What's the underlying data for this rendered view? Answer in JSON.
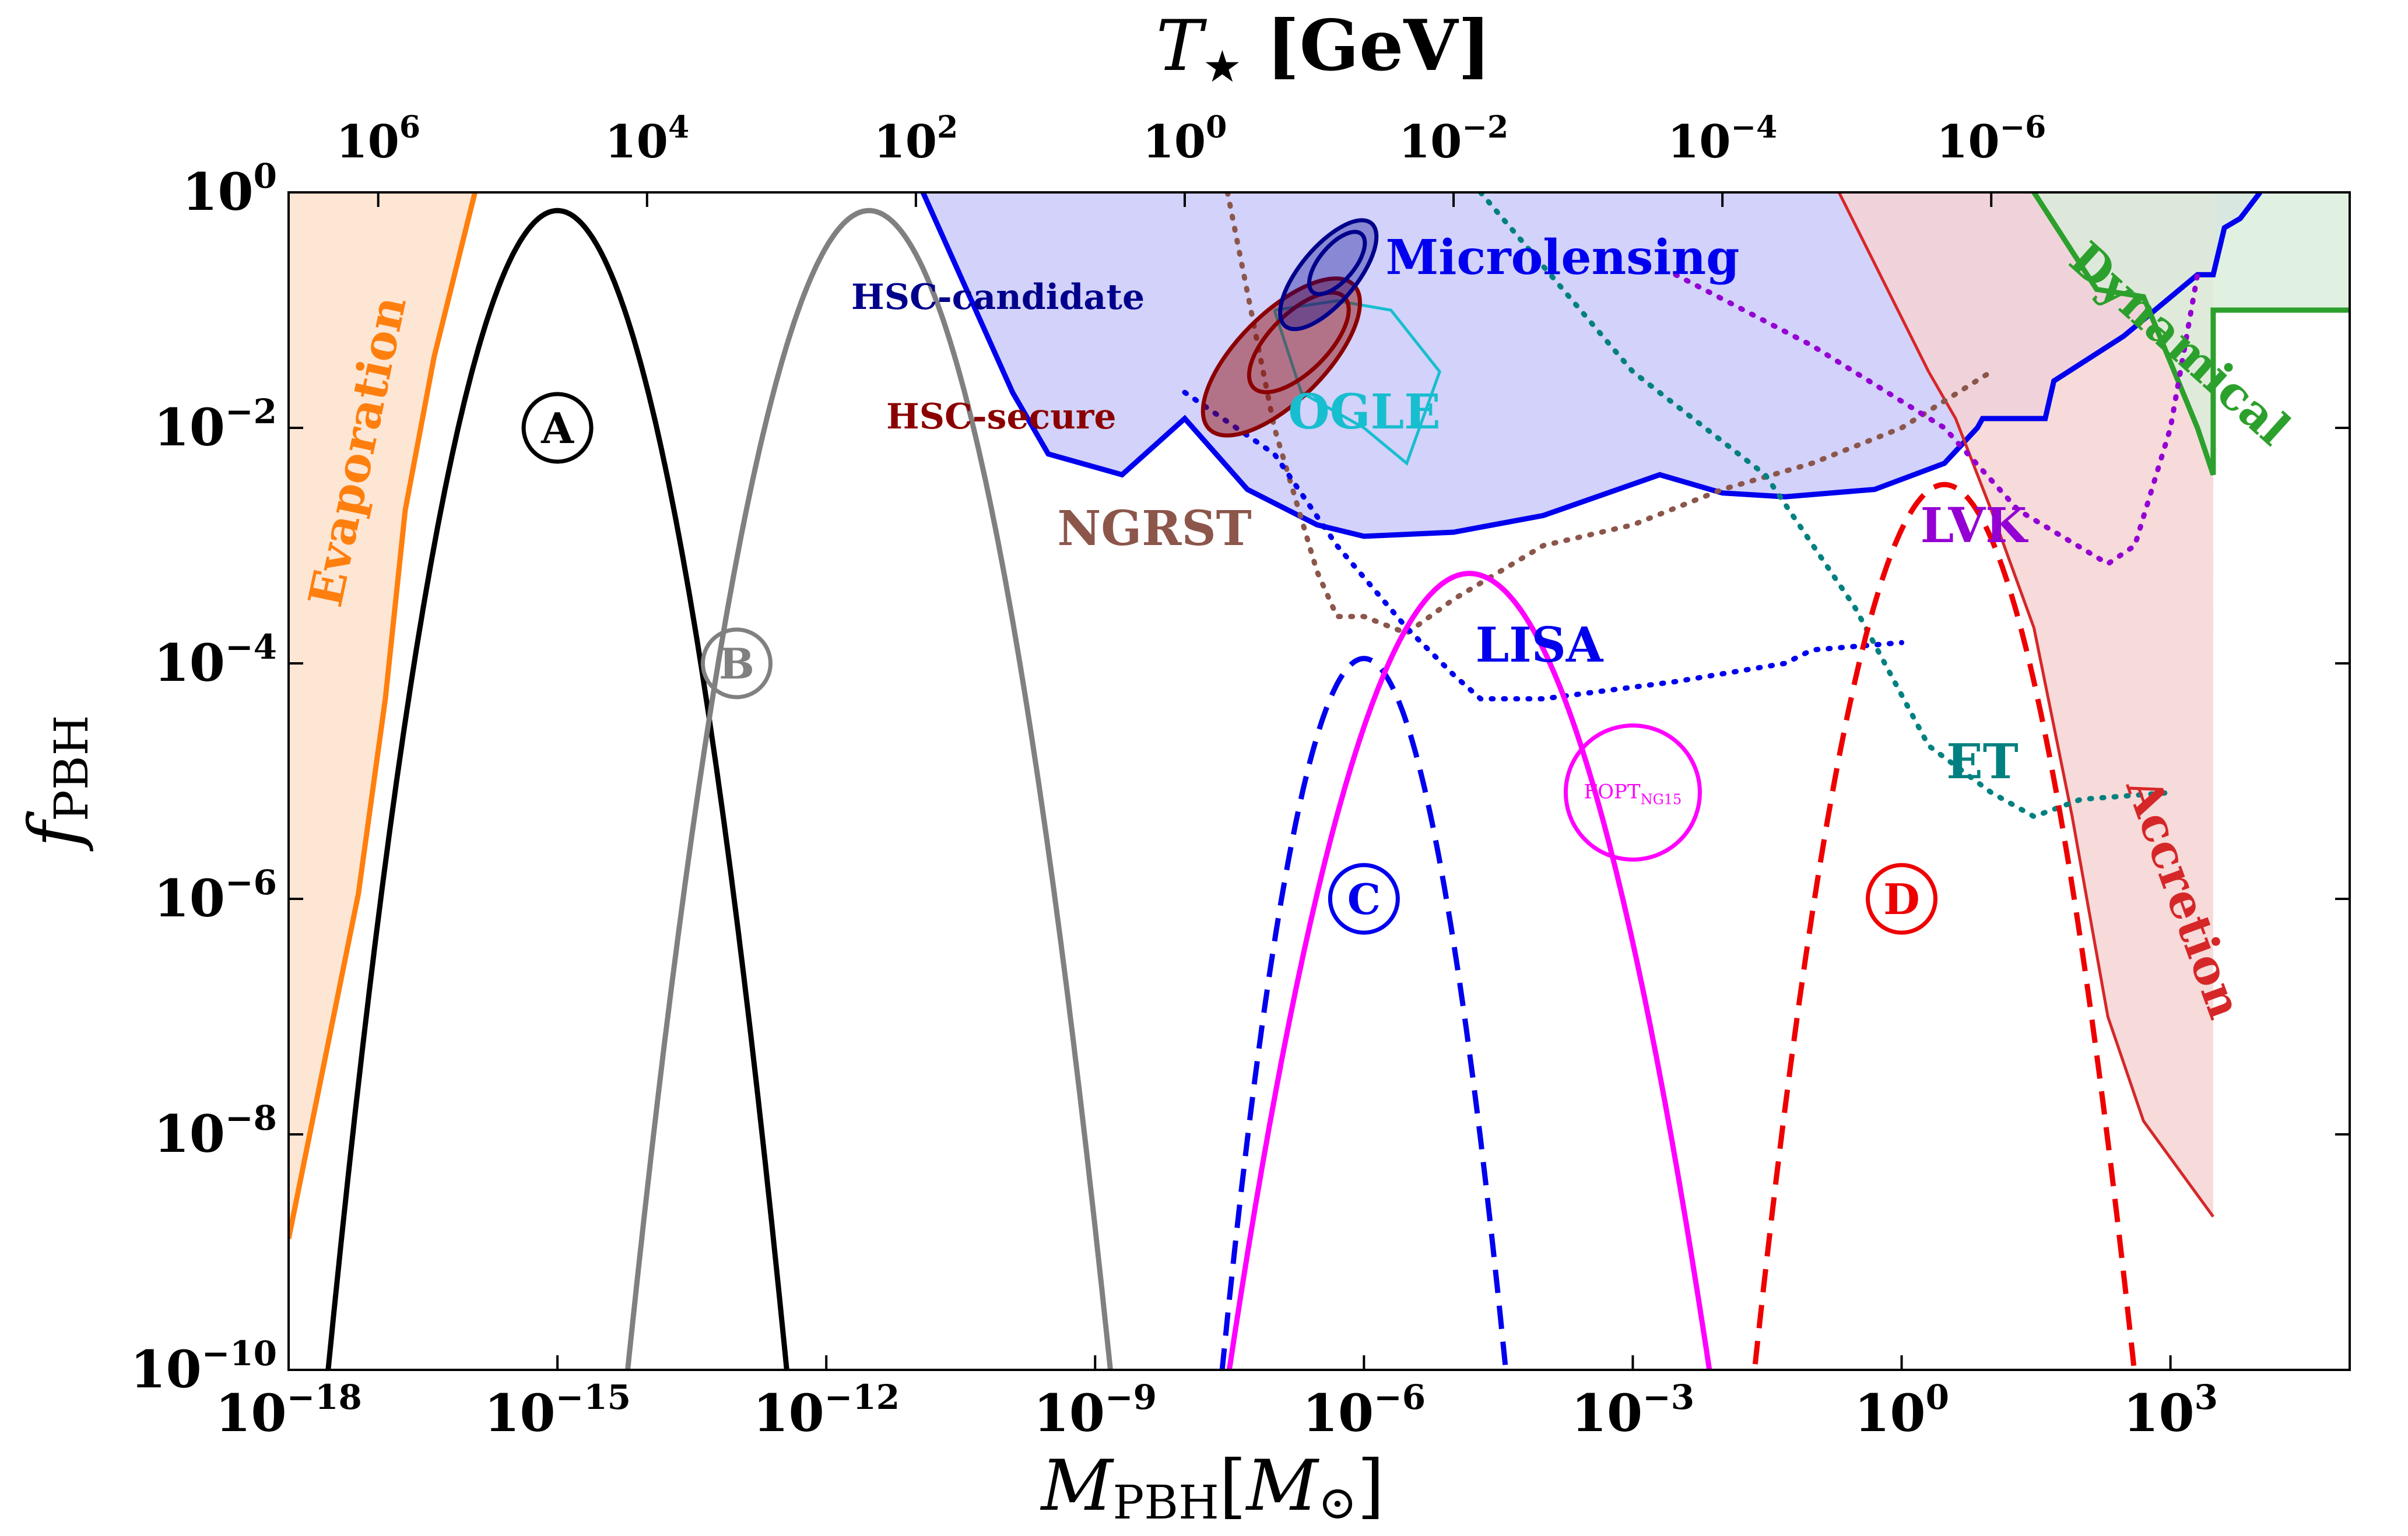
{
  "chart_data": {
    "type": "line",
    "xscale": "log",
    "yscale": "log",
    "xlim": [
      1e-18,
      100000.0
    ],
    "ylim": [
      1e-10,
      1
    ],
    "xlabel_main": "M",
    "xlabel_sub": "PBH",
    "xlabel_unit_open": "[",
    "xlabel_unit_sym": "M",
    "xlabel_unit_sub": "⊙",
    "xlabel_unit_close": "]",
    "ylabel_main": "f",
    "ylabel_sub": "PBH",
    "top_label_main": "T",
    "top_label_sub": "★",
    "top_label_unit": " [GeV]",
    "x_ticks": [
      {
        "base": "10",
        "exp": "−18",
        "m": 1e-18
      },
      {
        "base": "10",
        "exp": "−15",
        "m": 1e-15
      },
      {
        "base": "10",
        "exp": "−12",
        "m": 1e-12
      },
      {
        "base": "10",
        "exp": "−9",
        "m": 1e-09
      },
      {
        "base": "10",
        "exp": "−6",
        "m": 1e-06
      },
      {
        "base": "10",
        "exp": "−3",
        "m": 0.001
      },
      {
        "base": "10",
        "exp": "0",
        "m": 1
      },
      {
        "base": "10",
        "exp": "3",
        "m": 1000.0
      }
    ],
    "y_ticks": [
      {
        "base": "10",
        "exp": "0",
        "f": 1
      },
      {
        "base": "10",
        "exp": "−2",
        "f": 0.01
      },
      {
        "base": "10",
        "exp": "−4",
        "f": 0.0001
      },
      {
        "base": "10",
        "exp": "−6",
        "f": 1e-06
      },
      {
        "base": "10",
        "exp": "−8",
        "f": 1e-08
      },
      {
        "base": "10",
        "exp": "−10",
        "f": 1e-10
      }
    ],
    "top_ticks": [
      {
        "base": "10",
        "exp": "6",
        "m": 1e-17
      },
      {
        "base": "10",
        "exp": "4",
        "m": 1e-14
      },
      {
        "base": "10",
        "exp": "2",
        "m": 1e-11
      },
      {
        "base": "10",
        "exp": "0",
        "m": 1e-08
      },
      {
        "base": "10",
        "exp": "−2",
        "m": 1e-05
      },
      {
        "base": "10",
        "exp": "−4",
        "m": 0.01
      },
      {
        "base": "10",
        "exp": "−6",
        "m": 10.0
      }
    ],
    "colors": {
      "evaporation": "#ff7f0e",
      "evaporation_fill": "#fde6d4",
      "microlensing": "#0000ee",
      "microlensing_fill": "#d2d2fa",
      "dynamical": "#2ca02c",
      "dynamical_fill": "#d9eeda",
      "accretion": "#d62728",
      "accretion_fill": "#f6d4d4",
      "hsc_candidate": "#00008b",
      "hsc_secure": "#8b0000",
      "ogle": "#17becf",
      "ngrst": "#8c564b",
      "lisa": "#0000ee",
      "et": "#008080",
      "lvk": "#9400d3",
      "fopt": "#ff00ff",
      "curve_a": "#000000",
      "curve_b": "#808080",
      "curve_c": "#0000ee",
      "curve_d": "#ee0000"
    },
    "bounds": {
      "evaporation_line": [
        [
          1e-18,
          1.3e-09
        ],
        [
          6e-18,
          1.1e-06
        ],
        [
          1.2e-17,
          5e-05
        ],
        [
          2e-17,
          0.002
        ],
        [
          4.2e-17,
          0.04
        ],
        [
          1.2e-16,
          1
        ]
      ],
      "evaporation_line_inner": [
        [
          1e-18,
          2e-10
        ],
        [
          1e-17,
          1e-06
        ],
        [
          2.5e-17,
          0.0001
        ],
        [
          6e-17,
          0.015
        ],
        [
          2e-16,
          1
        ]
      ],
      "microlensing": [
        [
          1.2e-11,
          1
        ],
        [
          1.2e-10,
          0.02
        ],
        [
          3e-10,
          0.006
        ],
        [
          2e-09,
          0.004
        ],
        [
          1e-08,
          0.012
        ],
        [
          5e-08,
          0.003
        ],
        [
          3e-07,
          0.0015
        ],
        [
          1e-06,
          0.0012
        ],
        [
          1e-05,
          0.0013
        ],
        [
          0.0001,
          0.0018
        ],
        [
          0.002,
          0.004
        ],
        [
          0.01,
          0.0028
        ],
        [
          0.05,
          0.0026
        ],
        [
          0.5,
          0.003
        ],
        [
          3,
          0.005
        ],
        [
          7,
          0.01
        ],
        [
          8,
          0.012
        ],
        [
          40.0,
          0.012
        ],
        [
          50.0,
          0.025
        ],
        [
          300.0,
          0.06
        ],
        [
          2000.0,
          0.2
        ],
        [
          3000.0,
          0.2
        ],
        [
          4000.0,
          0.5
        ],
        [
          6000.0,
          0.6
        ],
        [
          10000.0,
          1
        ]
      ],
      "dynamical": [
        [
          30.0,
          1
        ],
        [
          150.0,
          0.15
        ],
        [
          500.0,
          0.13
        ],
        [
          2000.0,
          0.01
        ],
        [
          3000.0,
          0.004
        ],
        [
          3000.0,
          0.1
        ],
        [
          100000.0,
          0.1
        ]
      ],
      "accretion": [
        [
          3.0,
          0.01
        ],
        [
          10.0,
          0.003
        ],
        [
          20.0,
          0.0002
        ],
        [
          50.0,
          5e-06
        ],
        [
          200.0,
          1e-07
        ],
        [
          1000.0,
          1.1e-08
        ],
        [
          3000.0,
          2e-09
        ],
        [
          3000.0,
          1e-06
        ]
      ],
      "accretion_line": [
        [
          0.2,
          1
        ],
        [
          2.0,
          0.03
        ],
        [
          4.0,
          0.012
        ],
        [
          10.0,
          0.002
        ],
        [
          30.0,
          0.0002
        ],
        [
          80.0,
          5e-06
        ],
        [
          200.0,
          1e-07
        ],
        [
          500.0,
          1.3e-08
        ],
        [
          3000.0,
          2e-09
        ]
      ],
      "lisa": [
        [
          1e-08,
          0.02
        ],
        [
          1e-07,
          0.006
        ],
        [
          5e-07,
          0.001
        ],
        [
          3e-06,
          0.0002
        ],
        [
          1e-05,
          8e-05
        ],
        [
          2e-05,
          5e-05
        ],
        [
          0.0001,
          5e-05
        ],
        [
          0.003,
          7e-05
        ],
        [
          0.05,
          0.0001
        ],
        [
          0.1,
          0.00013
        ],
        [
          1.0,
          0.00015
        ]
      ],
      "ngrst": [
        [
          3e-08,
          1
        ],
        [
          1e-07,
          0.01
        ],
        [
          3e-07,
          0.0006
        ],
        [
          5e-07,
          0.00025
        ],
        [
          1e-06,
          0.00025
        ],
        [
          3e-06,
          0.00018
        ],
        [
          1e-05,
          0.00035
        ],
        [
          0.0001,
          0.001
        ],
        [
          0.001,
          0.0015
        ],
        [
          0.01,
          0.003
        ],
        [
          0.1,
          0.005
        ],
        [
          1.0,
          0.01
        ],
        [
          10.0,
          0.03
        ]
      ],
      "et": [
        [
          2e-05,
          1
        ],
        [
          0.001,
          0.03
        ],
        [
          0.03,
          0.004
        ],
        [
          0.3,
          0.0003
        ],
        [
          2.0,
          2e-05
        ],
        [
          10.0,
          8e-06
        ],
        [
          30.0,
          5e-06
        ],
        [
          100.0,
          7e-06
        ],
        [
          1000.0,
          8e-06
        ]
      ],
      "lvk": [
        [
          0.003,
          0.2
        ],
        [
          0.1,
          0.05
        ],
        [
          3.0,
          0.01
        ],
        [
          20.0,
          0.002
        ],
        [
          200.0,
          0.0007
        ],
        [
          400.0,
          0.001
        ],
        [
          1000.0,
          0.01
        ],
        [
          2000.0,
          0.2
        ]
      ],
      "ogle_contour": [
        [
          1e-07,
          0.1
        ],
        [
          2e-07,
          0.02
        ],
        [
          1e-06,
          0.01
        ],
        [
          3e-06,
          0.005
        ],
        [
          7e-06,
          0.03
        ],
        [
          2e-06,
          0.1
        ],
        [
          5e-07,
          0.12
        ],
        [
          1e-07,
          0.1
        ]
      ]
    },
    "peaks": {
      "a": {
        "m": 1e-15,
        "amp": 0.7,
        "width": 0.38
      },
      "b": {
        "m": 3e-12,
        "amp": 0.7,
        "width": 0.4
      },
      "c": {
        "m": 1e-06,
        "amp": 0.00011,
        "width": 0.3
      },
      "d": {
        "m": 3,
        "amp": 0.0033,
        "width": 0.36
      },
      "fopt": {
        "m": 1.5e-05,
        "amp": 0.00058,
        "width": 0.48
      }
    },
    "annotations": [
      {
        "text": "Evaporation",
        "role": "label-evaporation"
      },
      {
        "text": "Microlensing",
        "role": "label-microlensing"
      },
      {
        "text": "Dynamical",
        "role": "label-dynamical"
      },
      {
        "text": "Accretion",
        "role": "label-accretion"
      },
      {
        "text": "HSC-candidate",
        "role": "label-hsc-candidate"
      },
      {
        "text": "HSC-secure",
        "role": "label-hsc-secure"
      },
      {
        "text": "OGLE",
        "role": "label-ogle"
      },
      {
        "text": "NGRST",
        "role": "label-ngrst"
      },
      {
        "text": "LISA",
        "role": "label-lisa"
      },
      {
        "text": "ET",
        "role": "label-et"
      },
      {
        "text": "LVK",
        "role": "label-lvk"
      }
    ],
    "fopt_label_main": "FOPT",
    "fopt_label_sub": "NG15",
    "circle_labels": [
      "A",
      "B",
      "C",
      "D"
    ]
  }
}
